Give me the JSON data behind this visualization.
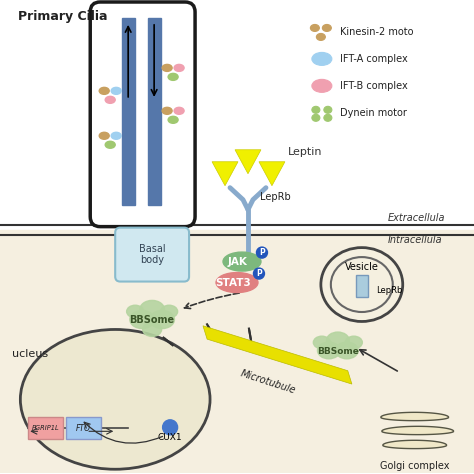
{
  "bg_color": "#ffffff",
  "title": "Primary Cilia",
  "extracellular_label": "Extracellula",
  "intracellular_label": "Intracellula",
  "nucleus_label": "ucleus",
  "legend": {
    "kinesin": "Kinesin-2 moto",
    "ifta": "IFT-A complex",
    "iftb": "IFT-B complex",
    "dynein": "Dynein motor"
  },
  "labels": {
    "leptin": "Leptin",
    "leprb_top": "LepRb",
    "jak": "JAK",
    "stat3": "STAT3",
    "nucleus_label": "ucleus",
    "bbsome_bottom": "BBSome",
    "basal_body": "Basal\nbody",
    "bbsome_left": "BBSome",
    "vesicle": "Vesicle",
    "leprb_right": "LepRb",
    "bbsome_right": "BBSome",
    "microtubule": "Microtubule",
    "golgi": "Golgi complex",
    "pgrip": "PGRIP1L",
    "fto": "FTO",
    "cux1": "CUX1"
  },
  "colors": {
    "cilia_outline": "#1a1a1a",
    "cilia_tube_blue": "#5577aa",
    "basal_body_fill": "#d0e8f0",
    "basal_body_stroke": "#aaccdd",
    "bbsome_fill": "#b5d4a0",
    "cell_membrane_line": "#333333",
    "membrane_bg_top": "#ffffff",
    "membrane_bg_bottom": "#f0e8d0",
    "nucleus_fill": "#ede8d0",
    "nucleus_stroke": "#333333",
    "jak_fill": "#7db87d",
    "stat3_fill": "#e08080",
    "leprb_fill": "#aaccdd",
    "vesicle_fill": "#f5f0e0",
    "microtubule_fill": "#e8e000",
    "golgi_fill": "#f0e8c8",
    "pgrip_fill": "#f0a0a0",
    "fto_fill": "#a0c8f0",
    "cux1_fill": "#4477cc",
    "leptin_fill": "#f0f000",
    "kinesin_fill": "#c8a060",
    "ifta_fill": "#a0d0f0",
    "iftb_fill": "#f0a0b0",
    "dynein_fill": "#a0c870"
  }
}
